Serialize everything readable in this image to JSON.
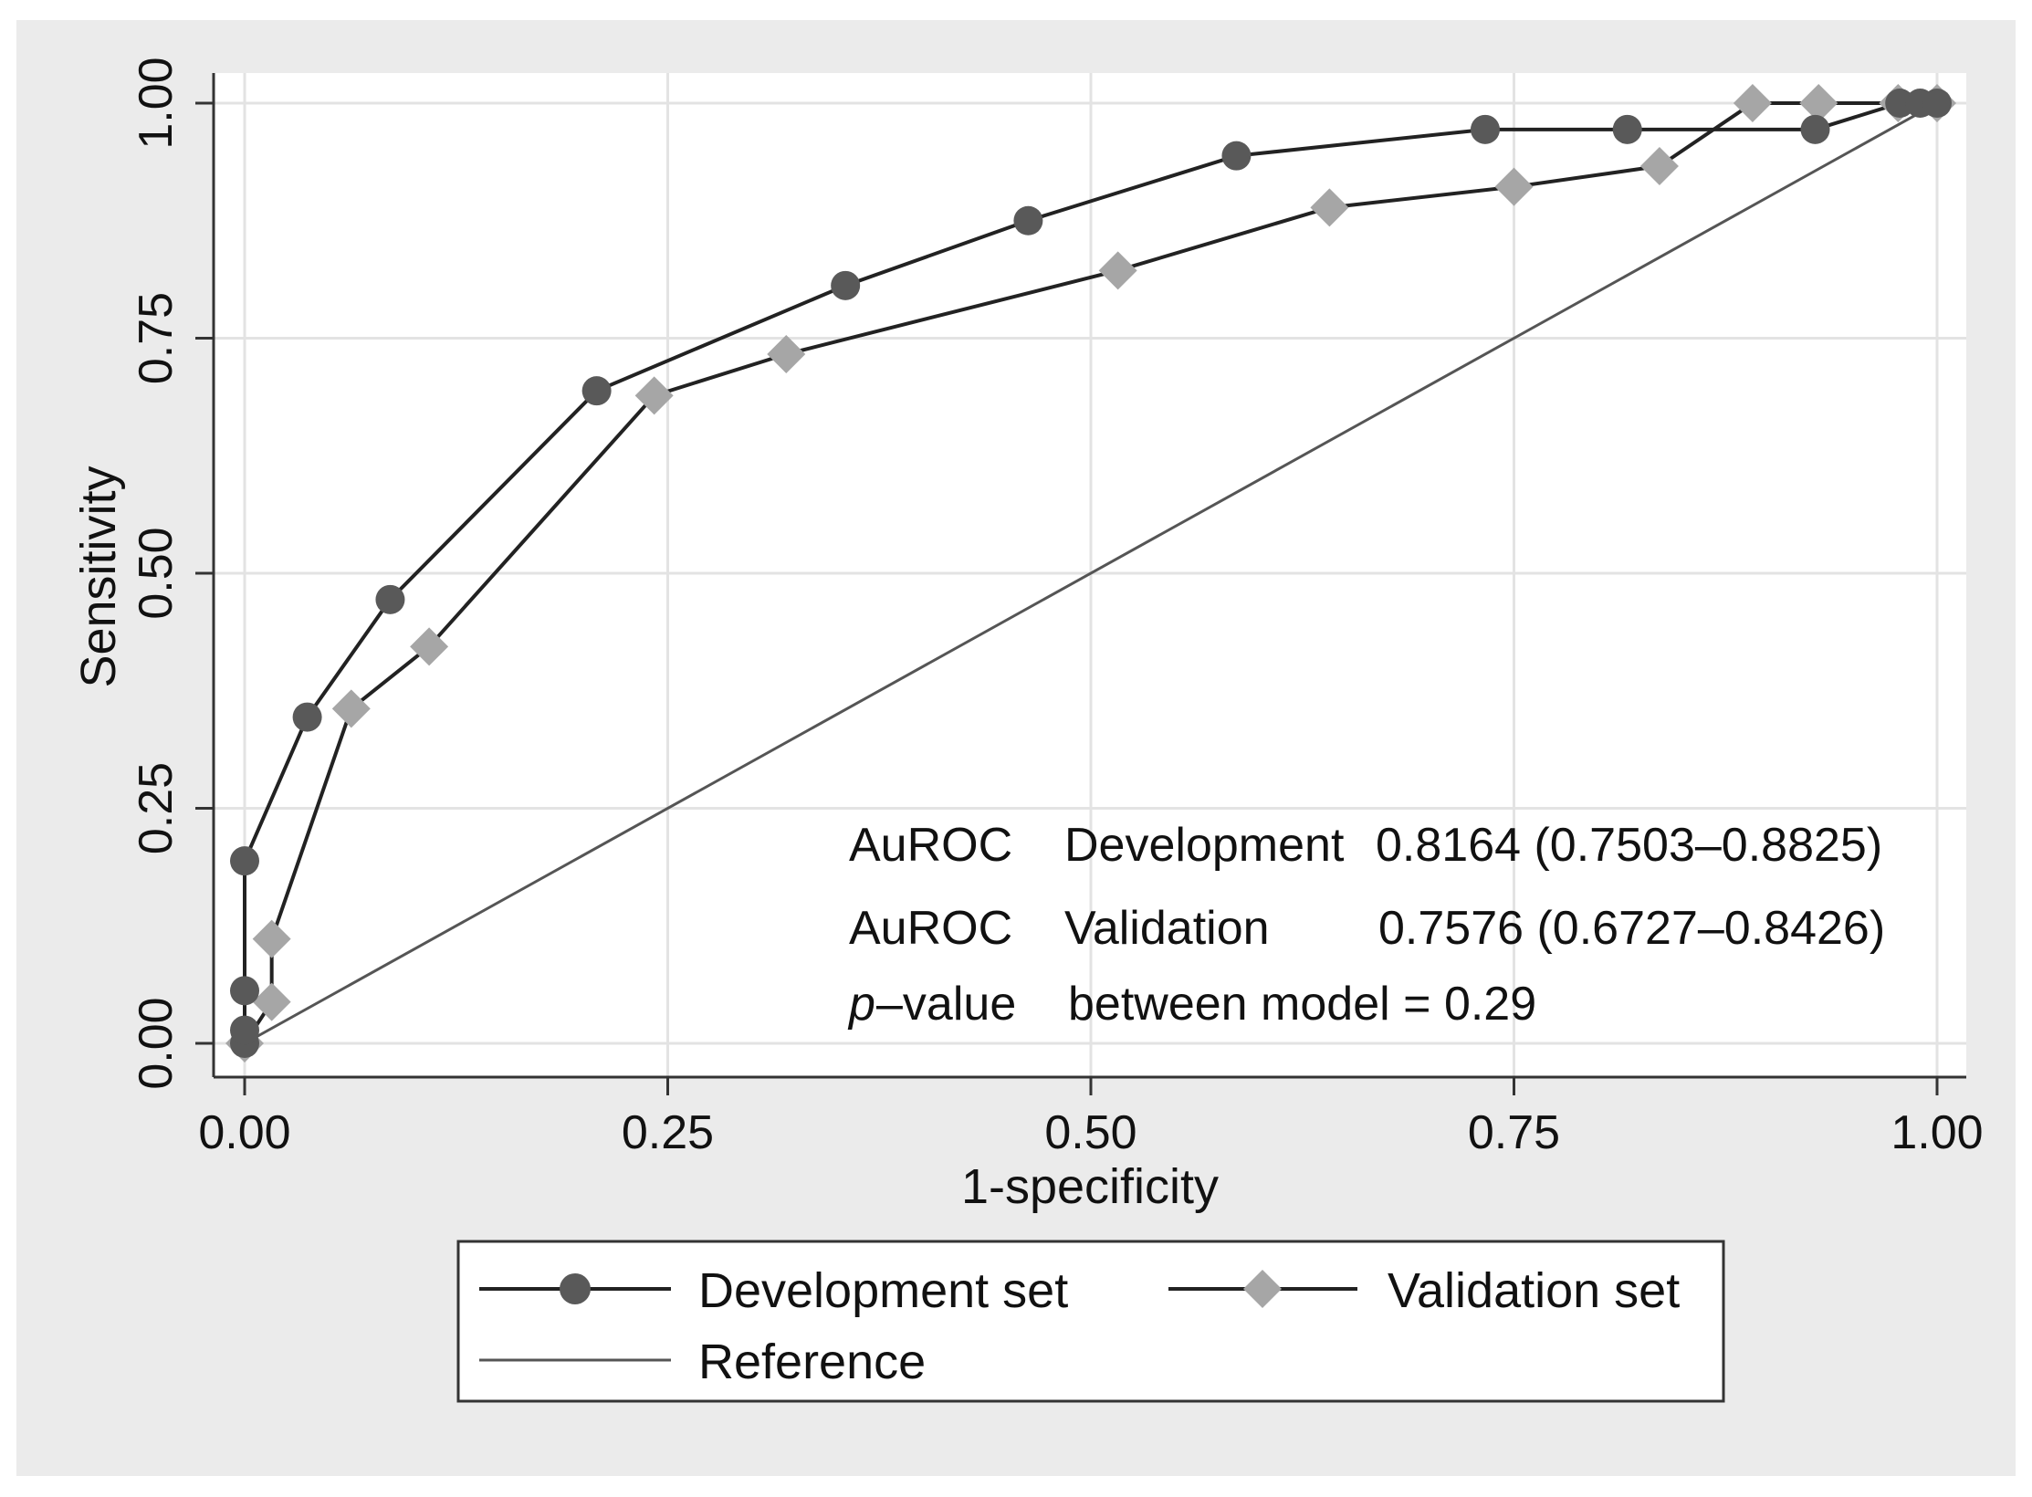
{
  "chart_data": {
    "type": "line",
    "xlabel": "1-specificity",
    "ylabel": "Sensitivity",
    "xlim": [
      0,
      1
    ],
    "ylim": [
      0,
      1
    ],
    "xticks": [
      "0.00",
      "0.25",
      "0.50",
      "0.75",
      "1.00"
    ],
    "yticks": [
      "0.00",
      "0.25",
      "0.50",
      "0.75",
      "1.00"
    ],
    "tick_values": [
      0,
      0.25,
      0.5,
      0.75,
      1.0
    ],
    "grid": true,
    "legend_position": "bottom",
    "series": [
      {
        "name": "Development set",
        "marker": "circle",
        "color": "#595959",
        "x": [
          0,
          0,
          0,
          0,
          0.037,
          0.086,
          0.208,
          0.355,
          0.463,
          0.586,
          0.733,
          0.817,
          0.928,
          0.978,
          0.99,
          1.0
        ],
        "y": [
          0,
          0.014,
          0.056,
          0.194,
          0.347,
          0.472,
          0.694,
          0.806,
          0.875,
          0.944,
          0.972,
          0.972,
          0.972,
          1.0,
          1.0,
          1.0
        ]
      },
      {
        "name": "Validation set",
        "marker": "diamond",
        "color": "#a6a6a6",
        "x": [
          0,
          0.016,
          0.016,
          0.063,
          0.109,
          0.242,
          0.32,
          0.516,
          0.641,
          0.75,
          0.836,
          0.891,
          0.93,
          0.977,
          1.0
        ],
        "y": [
          0,
          0.044,
          0.111,
          0.356,
          0.422,
          0.689,
          0.733,
          0.822,
          0.889,
          0.911,
          0.933,
          1.0,
          1.0,
          1.0,
          1.0
        ]
      },
      {
        "name": "Reference",
        "marker": "none",
        "color": "#555555",
        "x": [
          0,
          1
        ],
        "y": [
          0,
          1
        ]
      }
    ],
    "annotations": {
      "line1": {
        "label": "AuROC",
        "set": "Development",
        "value": "0.8164 (0.7503–0.8825)"
      },
      "line2": {
        "label": "AuROC",
        "set": "Validation",
        "value": "0.7576 (0.6727–0.8426)"
      },
      "line3": {
        "p": "p",
        "suffix": "–value",
        "text": "between model = 0.29"
      }
    },
    "legend": [
      "Development set",
      "Validation set",
      "Reference"
    ]
  },
  "colors": {
    "outer_background": "#ebebeb",
    "plot_background": "#ffffff",
    "grid": "#e3e3e3",
    "axis": "#333333"
  }
}
